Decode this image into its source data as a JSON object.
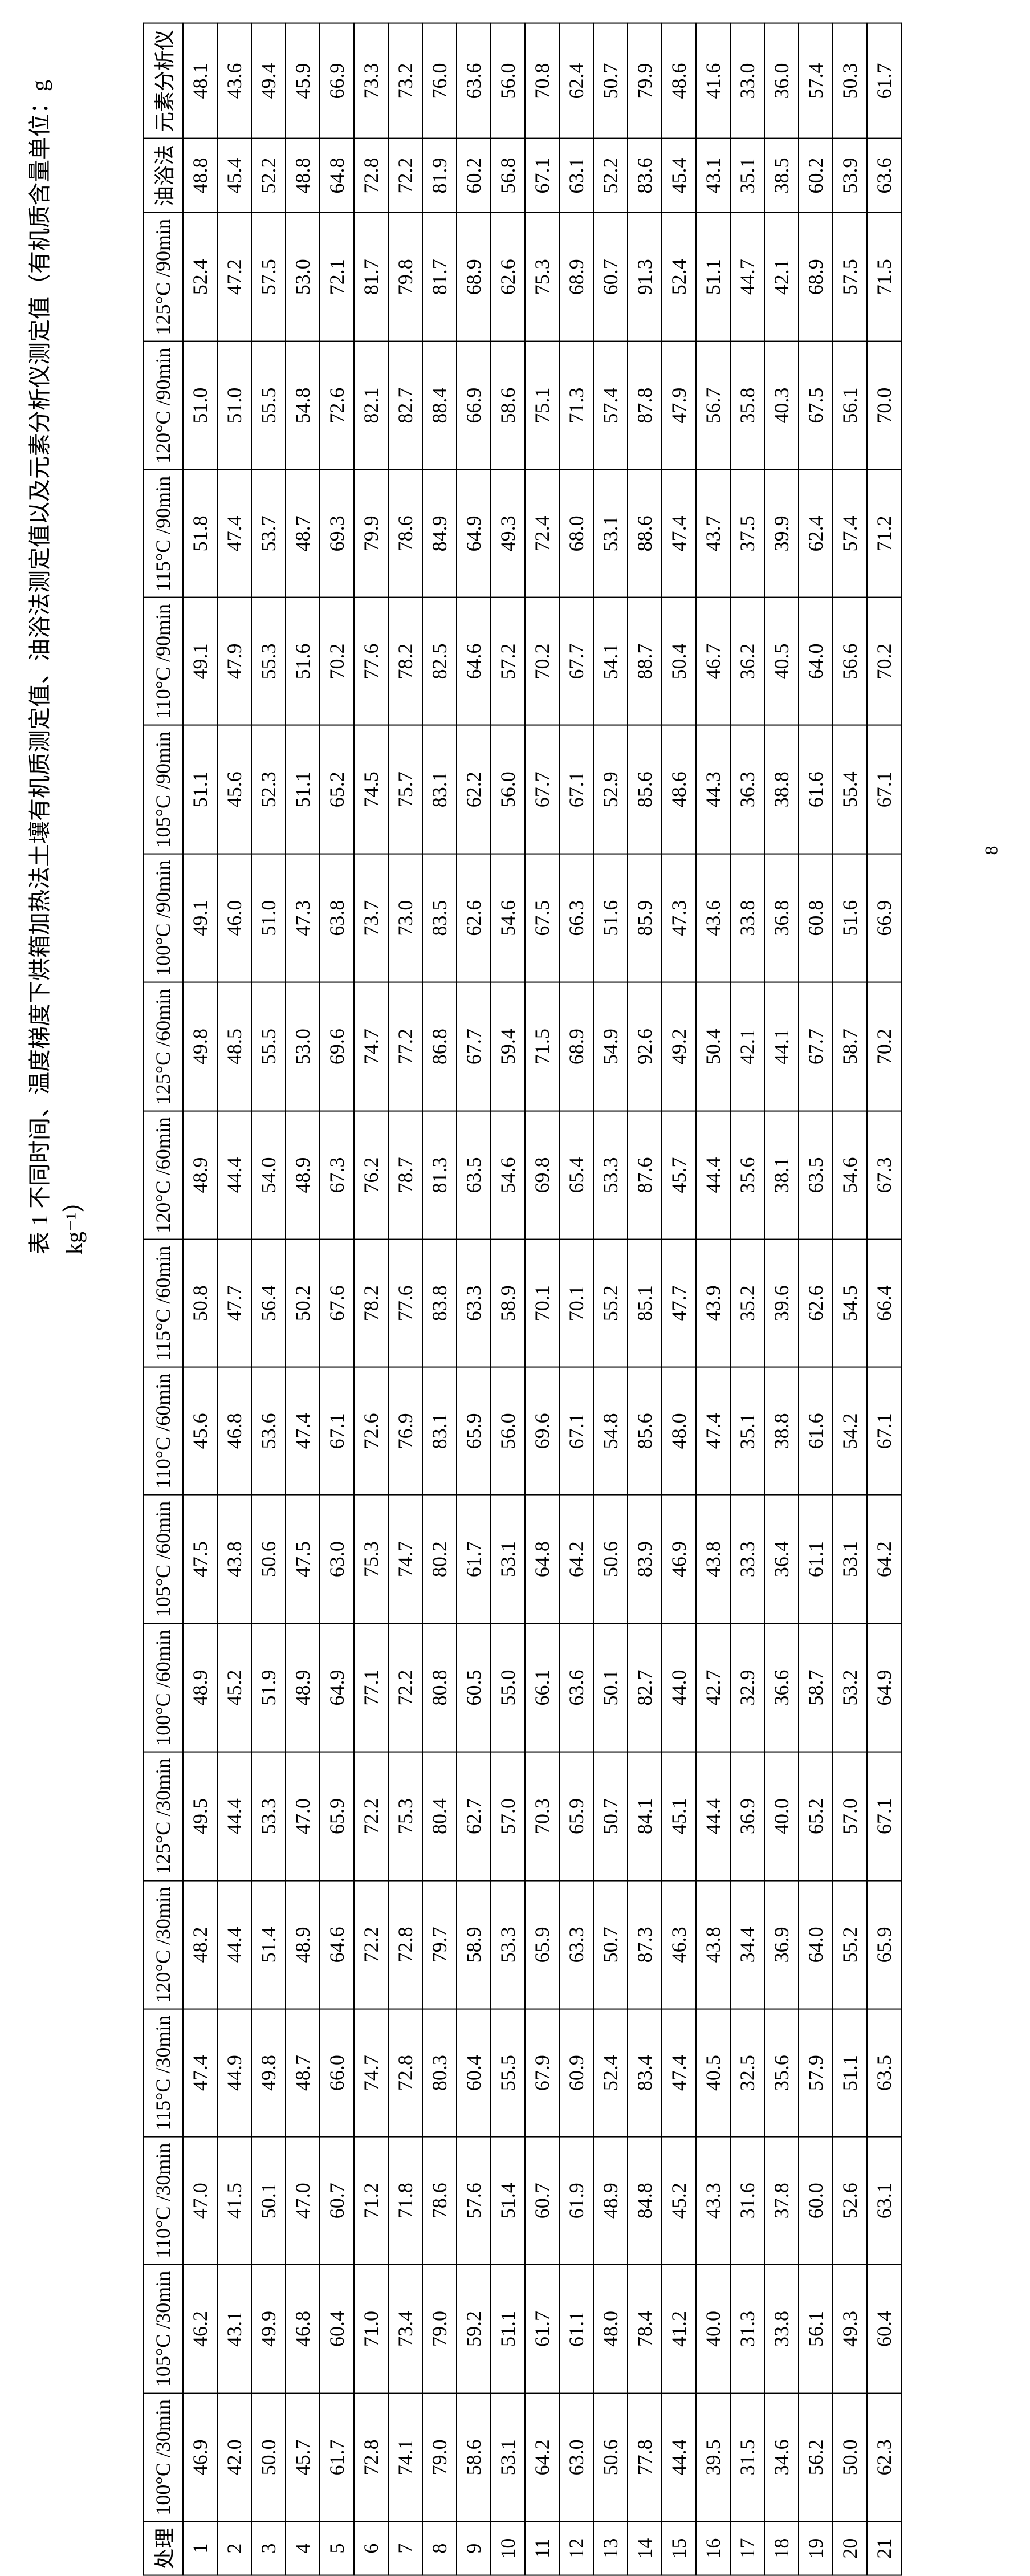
{
  "caption": "表 1 不同时间、温度梯度下烘箱加热法土壤有机质测定值、油浴法测定值以及元素分析仪测定值（有机质含量单位：g kg⁻¹）",
  "page_number": "8",
  "headers": {
    "treatment": "处理",
    "conditions": [
      "100°C /30min",
      "105°C /30min",
      "110°C /30min",
      "115°C /30min",
      "120°C /30min",
      "125°C /30min",
      "100°C /60min",
      "105°C /60min",
      "110°C /60min",
      "115°C /60min",
      "120°C /60min",
      "125°C /60min",
      "100°C /90min",
      "105°C /90min",
      "110°C /90min",
      "115°C /90min",
      "120°C /90min",
      "125°C /90min"
    ],
    "oilbath": "油浴法",
    "analyzer": "元素分析仪"
  },
  "rows": [
    {
      "id": "1",
      "v": [
        "46.9",
        "46.2",
        "47.0",
        "47.4",
        "48.2",
        "49.5",
        "48.9",
        "47.5",
        "45.6",
        "50.8",
        "48.9",
        "49.8",
        "49.1",
        "51.1",
        "49.1",
        "51.8",
        "51.0",
        "52.4"
      ],
      "ob": "48.8",
      "an": "48.1"
    },
    {
      "id": "2",
      "v": [
        "42.0",
        "43.1",
        "41.5",
        "44.9",
        "44.4",
        "44.4",
        "45.2",
        "43.8",
        "46.8",
        "47.7",
        "44.4",
        "48.5",
        "46.0",
        "45.6",
        "47.9",
        "47.4",
        "51.0",
        "47.2"
      ],
      "ob": "45.4",
      "an": "43.6"
    },
    {
      "id": "3",
      "v": [
        "50.0",
        "49.9",
        "50.1",
        "49.8",
        "51.4",
        "53.3",
        "51.9",
        "50.6",
        "53.6",
        "56.4",
        "54.0",
        "55.5",
        "51.0",
        "52.3",
        "55.3",
        "53.7",
        "55.5",
        "57.5"
      ],
      "ob": "52.2",
      "an": "49.4"
    },
    {
      "id": "4",
      "v": [
        "45.7",
        "46.8",
        "47.0",
        "48.7",
        "48.9",
        "47.0",
        "48.9",
        "47.5",
        "47.4",
        "50.2",
        "48.9",
        "53.0",
        "47.3",
        "51.1",
        "51.6",
        "48.7",
        "54.8",
        "53.0"
      ],
      "ob": "48.8",
      "an": "45.9"
    },
    {
      "id": "5",
      "v": [
        "61.7",
        "60.4",
        "60.7",
        "66.0",
        "64.6",
        "65.9",
        "64.9",
        "63.0",
        "67.1",
        "67.6",
        "67.3",
        "69.6",
        "63.8",
        "65.2",
        "70.2",
        "69.3",
        "72.6",
        "72.1"
      ],
      "ob": "64.8",
      "an": "66.9"
    },
    {
      "id": "6",
      "v": [
        "72.8",
        "71.0",
        "71.2",
        "74.7",
        "72.2",
        "72.2",
        "77.1",
        "75.3",
        "72.6",
        "78.2",
        "76.2",
        "74.7",
        "73.7",
        "74.5",
        "77.6",
        "79.9",
        "82.1",
        "81.7"
      ],
      "ob": "72.8",
      "an": "73.3"
    },
    {
      "id": "7",
      "v": [
        "74.1",
        "73.4",
        "71.8",
        "72.8",
        "72.8",
        "75.3",
        "72.2",
        "74.7",
        "76.9",
        "77.6",
        "78.7",
        "77.2",
        "73.0",
        "75.7",
        "78.2",
        "78.6",
        "82.7",
        "79.8"
      ],
      "ob": "72.2",
      "an": "73.2"
    },
    {
      "id": "8",
      "v": [
        "79.0",
        "79.0",
        "78.6",
        "80.3",
        "79.7",
        "80.4",
        "80.8",
        "80.2",
        "83.1",
        "83.8",
        "81.3",
        "86.8",
        "83.5",
        "83.1",
        "82.5",
        "84.9",
        "88.4",
        "81.7"
      ],
      "ob": "81.9",
      "an": "76.0"
    },
    {
      "id": "9",
      "v": [
        "58.6",
        "59.2",
        "57.6",
        "60.4",
        "58.9",
        "62.7",
        "60.5",
        "61.7",
        "65.9",
        "63.3",
        "63.5",
        "67.7",
        "62.6",
        "62.2",
        "64.6",
        "64.9",
        "66.9",
        "68.9"
      ],
      "ob": "60.2",
      "an": "63.6"
    },
    {
      "id": "10",
      "v": [
        "53.1",
        "51.1",
        "51.4",
        "55.5",
        "53.3",
        "57.0",
        "55.0",
        "53.1",
        "56.0",
        "58.9",
        "54.6",
        "59.4",
        "54.6",
        "56.0",
        "57.2",
        "49.3",
        "58.6",
        "62.6"
      ],
      "ob": "56.8",
      "an": "56.0"
    },
    {
      "id": "11",
      "v": [
        "64.2",
        "61.7",
        "60.7",
        "67.9",
        "65.9",
        "70.3",
        "66.1",
        "64.8",
        "69.6",
        "70.1",
        "69.8",
        "71.5",
        "67.5",
        "67.7",
        "70.2",
        "72.4",
        "75.1",
        "75.3"
      ],
      "ob": "67.1",
      "an": "70.8"
    },
    {
      "id": "12",
      "v": [
        "63.0",
        "61.1",
        "61.9",
        "60.9",
        "63.3",
        "65.9",
        "63.6",
        "64.2",
        "67.1",
        "70.1",
        "65.4",
        "68.9",
        "66.3",
        "67.1",
        "67.7",
        "68.0",
        "71.3",
        "68.9"
      ],
      "ob": "63.1",
      "an": "62.4"
    },
    {
      "id": "13",
      "v": [
        "50.6",
        "48.0",
        "48.9",
        "52.4",
        "50.7",
        "50.7",
        "50.1",
        "50.6",
        "54.8",
        "55.2",
        "53.3",
        "54.9",
        "51.6",
        "52.9",
        "54.1",
        "53.1",
        "57.4",
        "60.7"
      ],
      "ob": "52.2",
      "an": "50.7"
    },
    {
      "id": "14",
      "v": [
        "77.8",
        "78.4",
        "84.8",
        "83.4",
        "87.3",
        "84.1",
        "82.7",
        "83.9",
        "85.6",
        "85.1",
        "87.6",
        "92.6",
        "85.9",
        "85.6",
        "88.7",
        "88.6",
        "87.8",
        "91.3"
      ],
      "ob": "83.6",
      "an": "79.9"
    },
    {
      "id": "15",
      "v": [
        "44.4",
        "41.2",
        "45.2",
        "47.4",
        "46.3",
        "45.1",
        "44.0",
        "46.9",
        "48.0",
        "47.7",
        "45.7",
        "49.2",
        "47.3",
        "48.6",
        "50.4",
        "47.4",
        "47.9",
        "52.4"
      ],
      "ob": "45.4",
      "an": "48.6"
    },
    {
      "id": "16",
      "v": [
        "39.5",
        "40.0",
        "43.3",
        "40.5",
        "43.8",
        "44.4",
        "42.7",
        "43.8",
        "47.4",
        "43.9",
        "44.4",
        "50.4",
        "43.6",
        "44.3",
        "46.7",
        "43.7",
        "56.7",
        "51.1"
      ],
      "ob": "43.1",
      "an": "41.6"
    },
    {
      "id": "17",
      "v": [
        "31.5",
        "31.3",
        "31.6",
        "32.5",
        "34.4",
        "36.9",
        "32.9",
        "33.3",
        "35.1",
        "35.2",
        "35.6",
        "42.1",
        "33.8",
        "36.3",
        "36.2",
        "37.5",
        "35.8",
        "44.7"
      ],
      "ob": "35.1",
      "an": "33.0"
    },
    {
      "id": "18",
      "v": [
        "34.6",
        "33.8",
        "37.8",
        "35.6",
        "36.9",
        "40.0",
        "36.6",
        "36.4",
        "38.8",
        "39.6",
        "38.1",
        "44.1",
        "36.8",
        "38.8",
        "40.5",
        "39.9",
        "40.3",
        "42.1"
      ],
      "ob": "38.5",
      "an": "36.0"
    },
    {
      "id": "19",
      "v": [
        "56.2",
        "56.1",
        "60.0",
        "57.9",
        "64.0",
        "65.2",
        "58.7",
        "61.1",
        "61.6",
        "62.6",
        "63.5",
        "67.7",
        "60.8",
        "61.6",
        "64.0",
        "62.4",
        "67.5",
        "68.9"
      ],
      "ob": "60.2",
      "an": "57.4"
    },
    {
      "id": "20",
      "v": [
        "50.0",
        "49.3",
        "52.6",
        "51.1",
        "55.2",
        "57.0",
        "53.2",
        "53.1",
        "54.2",
        "54.5",
        "54.6",
        "58.7",
        "51.6",
        "55.4",
        "56.6",
        "57.4",
        "56.1",
        "57.5"
      ],
      "ob": "53.9",
      "an": "50.3"
    },
    {
      "id": "21",
      "v": [
        "62.3",
        "60.4",
        "63.1",
        "63.5",
        "65.9",
        "67.1",
        "64.9",
        "64.2",
        "67.1",
        "66.4",
        "67.3",
        "70.2",
        "66.9",
        "67.1",
        "70.2",
        "71.2",
        "70.0",
        "71.5"
      ],
      "ob": "63.6",
      "an": "61.7"
    }
  ]
}
